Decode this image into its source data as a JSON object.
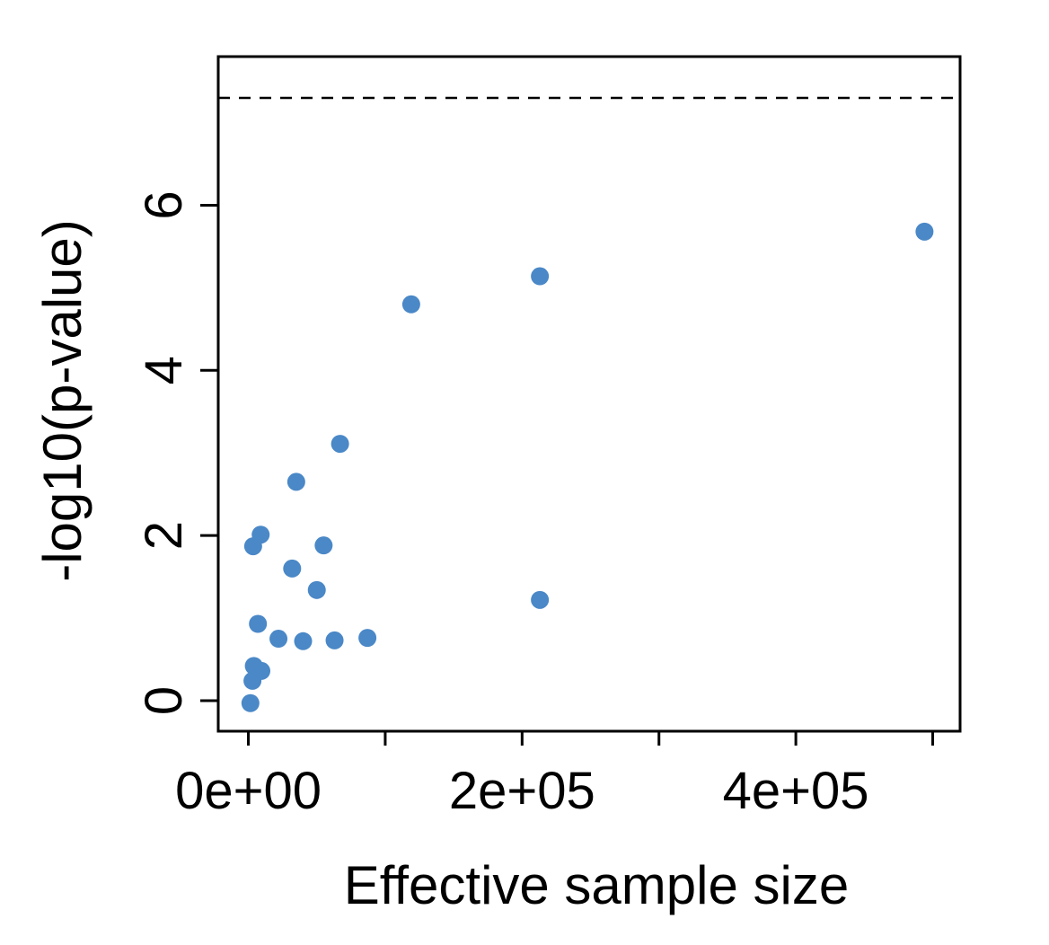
{
  "chart_data": {
    "type": "scatter",
    "xlabel": "Effective sample size",
    "ylabel": "-log10(p-value)",
    "xlim": [
      -22000,
      520000
    ],
    "ylim": [
      -0.37,
      7.8
    ],
    "x_ticks": [
      0,
      100000,
      200000,
      300000,
      400000,
      500000
    ],
    "x_tick_labels": [
      "0e+00",
      "",
      "2e+05",
      "",
      "4e+05",
      ""
    ],
    "y_ticks": [
      0,
      2,
      4,
      6
    ],
    "y_tick_labels": [
      "0",
      "2",
      "4",
      "6"
    ],
    "reference_line": {
      "y": 7.3,
      "style": "dashed",
      "color": "#000000"
    },
    "point_color": "#4a88c7",
    "grid": false,
    "legend": "none",
    "points": [
      {
        "x": 1500,
        "y": -0.03
      },
      {
        "x": 3000,
        "y": 0.24
      },
      {
        "x": 4000,
        "y": 0.42
      },
      {
        "x": 9500,
        "y": 0.36
      },
      {
        "x": 7000,
        "y": 0.93
      },
      {
        "x": 3500,
        "y": 1.87
      },
      {
        "x": 9000,
        "y": 2.01
      },
      {
        "x": 22000,
        "y": 0.75
      },
      {
        "x": 32000,
        "y": 1.6
      },
      {
        "x": 35000,
        "y": 2.65
      },
      {
        "x": 40000,
        "y": 0.72
      },
      {
        "x": 50000,
        "y": 1.34
      },
      {
        "x": 55000,
        "y": 1.88
      },
      {
        "x": 63000,
        "y": 0.73
      },
      {
        "x": 67000,
        "y": 3.11
      },
      {
        "x": 87000,
        "y": 0.76
      },
      {
        "x": 119000,
        "y": 4.8
      },
      {
        "x": 213000,
        "y": 5.14
      },
      {
        "x": 213000,
        "y": 1.22
      },
      {
        "x": 494000,
        "y": 5.68
      }
    ]
  }
}
